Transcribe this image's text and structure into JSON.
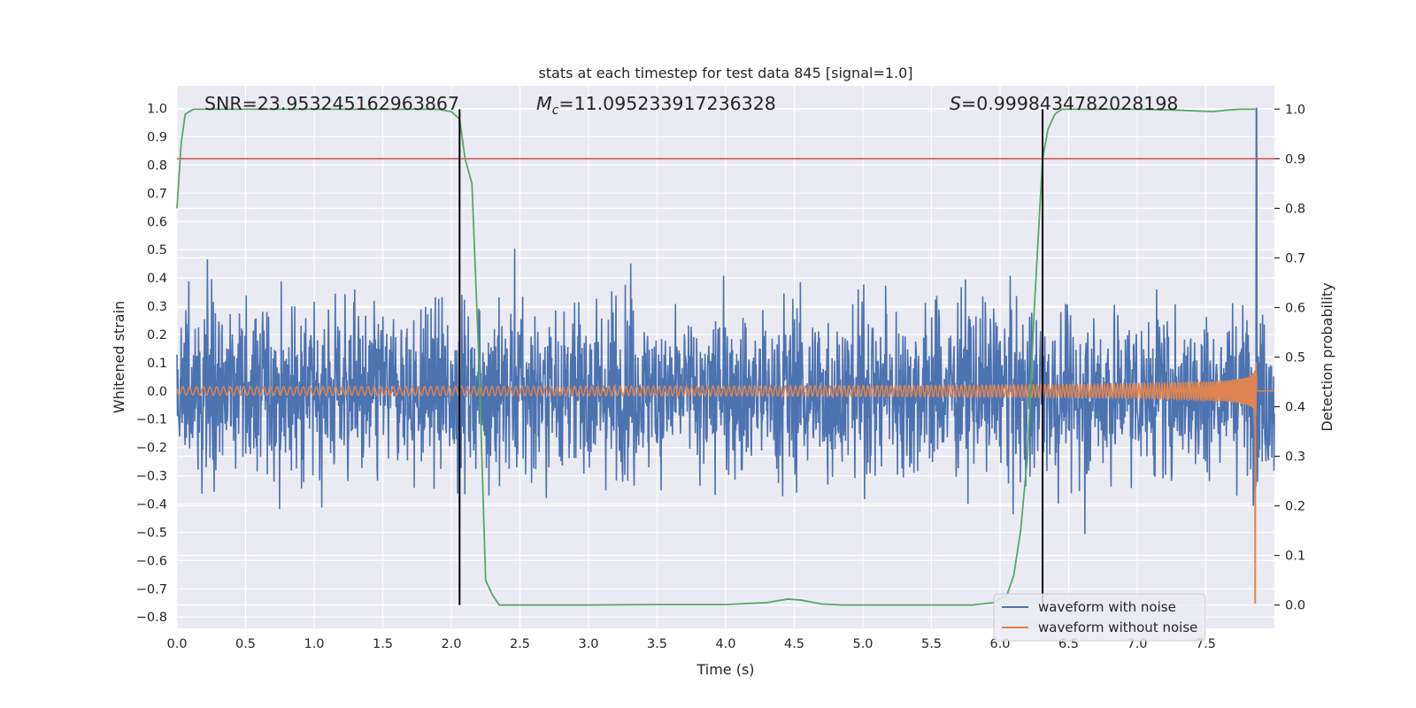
{
  "chart_data": {
    "type": "line",
    "title": "stats at each timestep for test data 845 [signal=1.0]",
    "xlabel": "Time (s)",
    "ylabel_left": "Whitened strain",
    "ylabel_right": "Detection probability",
    "xlim": [
      0.0,
      8.0
    ],
    "ylim_left": [
      -0.84,
      1.08
    ],
    "ylim_right": [
      -0.047,
      1.047
    ],
    "xticks": [
      "0.0",
      "0.5",
      "1.0",
      "1.5",
      "2.0",
      "2.5",
      "3.0",
      "3.5",
      "4.0",
      "4.5",
      "5.0",
      "5.5",
      "6.0",
      "6.5",
      "7.0",
      "7.5"
    ],
    "yticks_left": [
      "1.0",
      "0.9",
      "0.8",
      "0.7",
      "0.6",
      "0.5",
      "0.4",
      "0.3",
      "0.2",
      "0.1",
      "0.0",
      "−0.1",
      "−0.2",
      "−0.3",
      "−0.4",
      "−0.5",
      "−0.6",
      "−0.7",
      "−0.8"
    ],
    "yticks_right": [
      "1.0",
      "0.9",
      "0.8",
      "0.7",
      "0.6",
      "0.5",
      "0.4",
      "0.3",
      "0.2",
      "0.1",
      "0.0"
    ],
    "grid": true,
    "annotations": {
      "snr": "SNR=23.953245162963867",
      "mc_symbol": "M",
      "mc_sub": "c",
      "mc_value": "=11.095233917236328",
      "s_symbol": "S",
      "s_value": "=0.9998434782028198"
    },
    "vlines_x": [
      2.06,
      6.31
    ],
    "threshold_right": 0.9,
    "legend_position": "lower-right",
    "series": [
      {
        "name": "waveform with noise",
        "color": "#4c72b0",
        "axis": "left",
        "t_end": 8.0,
        "typical_abs_max": 0.3,
        "peak_x": 7.87,
        "peak_y": 1.0,
        "min_y": -0.75
      },
      {
        "name": "waveform without noise",
        "color": "#dd8452",
        "axis": "left",
        "chirp_t_start": 0.0,
        "chirp_t_merge": 7.87,
        "amp_start": 0.015,
        "amp_at_7": 0.1,
        "amp_peak": 0.52,
        "freq_start_hz": 20,
        "peak_x": 7.86,
        "min_y": -0.75
      },
      {
        "name": "",
        "color": "#55a868",
        "axis": "right",
        "x": [
          0.0,
          0.03,
          0.06,
          0.12,
          0.2,
          0.5,
          1.0,
          1.5,
          1.9,
          2.0,
          2.06,
          2.1,
          2.15,
          2.2,
          2.25,
          2.3,
          2.35,
          2.5,
          3.0,
          3.5,
          4.0,
          4.3,
          4.45,
          4.55,
          4.7,
          4.85,
          5.0,
          5.5,
          5.8,
          5.95,
          6.05,
          6.1,
          6.15,
          6.2,
          6.25,
          6.31,
          6.35,
          6.4,
          6.45,
          6.5,
          6.7,
          7.0,
          7.3,
          7.55,
          7.65,
          7.75,
          7.86
        ],
        "y": [
          0.8,
          0.93,
          0.99,
          1.0,
          1.0,
          1.0,
          1.0,
          1.0,
          1.0,
          0.995,
          0.98,
          0.9,
          0.85,
          0.5,
          0.05,
          0.02,
          0.0,
          0.0,
          0.0,
          0.001,
          0.001,
          0.005,
          0.012,
          0.01,
          0.002,
          0.0,
          0.0,
          0.0,
          0.0,
          0.005,
          0.02,
          0.06,
          0.15,
          0.3,
          0.6,
          0.9,
          0.96,
          0.99,
          1.0,
          1.0,
          1.0,
          1.0,
          0.998,
          0.995,
          0.998,
          1.0,
          1.0
        ]
      },
      {
        "name": "",
        "color": "#c44e52",
        "axis": "right",
        "y_const": 0.9
      }
    ]
  }
}
